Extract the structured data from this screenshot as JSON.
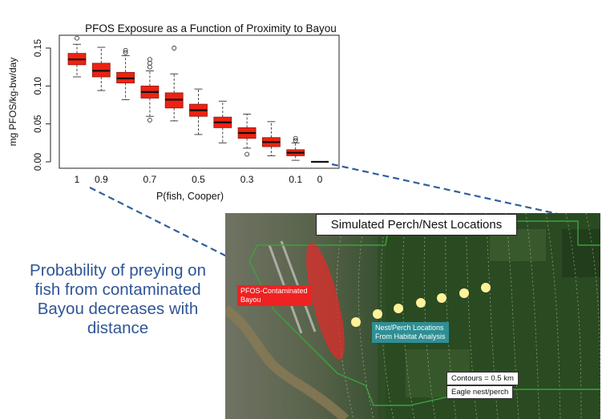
{
  "chart_data": {
    "type": "boxplot",
    "title": "PFOS Exposure as a Function of Proximity to Bayou",
    "xlabel": "P(fish, Cooper)",
    "ylabel": "mg PFOS/kg-bw/day",
    "ylim": [
      0,
      0.16
    ],
    "yticks": [
      "0.00",
      "0.05",
      "0.10",
      "0.15"
    ],
    "categories": [
      "1",
      "0.9",
      "0.8",
      "0.7",
      "0.6",
      "0.5",
      "0.4",
      "0.3",
      "0.2",
      "0.1",
      "0"
    ],
    "xtick_labels": [
      "1",
      "0.9",
      "",
      "0.7",
      "",
      "0.5",
      "",
      "0.3",
      "",
      "0.1",
      "0"
    ],
    "box_color": "#ee2211",
    "boxes": [
      {
        "median": 0.135,
        "q1": 0.128,
        "q3": 0.143,
        "wlo": 0.112,
        "whi": 0.155,
        "outliers": [
          0.163
        ]
      },
      {
        "median": 0.12,
        "q1": 0.112,
        "q3": 0.13,
        "wlo": 0.094,
        "whi": 0.151,
        "outliers": []
      },
      {
        "median": 0.11,
        "q1": 0.104,
        "q3": 0.118,
        "wlo": 0.082,
        "whi": 0.14,
        "outliers": [
          0.144,
          0.147
        ]
      },
      {
        "median": 0.092,
        "q1": 0.084,
        "q3": 0.1,
        "wlo": 0.06,
        "whi": 0.12,
        "outliers": [
          0.055,
          0.125,
          0.13,
          0.135
        ]
      },
      {
        "median": 0.082,
        "q1": 0.071,
        "q3": 0.091,
        "wlo": 0.054,
        "whi": 0.116,
        "outliers": [
          0.15
        ]
      },
      {
        "median": 0.068,
        "q1": 0.06,
        "q3": 0.076,
        "wlo": 0.036,
        "whi": 0.096,
        "outliers": []
      },
      {
        "median": 0.052,
        "q1": 0.045,
        "q3": 0.059,
        "wlo": 0.025,
        "whi": 0.08,
        "outliers": []
      },
      {
        "median": 0.038,
        "q1": 0.031,
        "q3": 0.045,
        "wlo": 0.018,
        "whi": 0.063,
        "outliers": [
          0.01
        ]
      },
      {
        "median": 0.026,
        "q1": 0.02,
        "q3": 0.032,
        "wlo": 0.008,
        "whi": 0.053,
        "outliers": []
      },
      {
        "median": 0.012,
        "q1": 0.008,
        "q3": 0.016,
        "wlo": 0.002,
        "whi": 0.025,
        "outliers": [
          0.028,
          0.031
        ]
      },
      {
        "median": 0.0,
        "q1": 0.0,
        "q3": 0.0,
        "wlo": 0.0,
        "whi": 0.0,
        "outliers": []
      }
    ]
  },
  "caption": {
    "lines": [
      "Probability of preying on",
      "fish from contaminated",
      "Bayou decreases with",
      "distance"
    ]
  },
  "map": {
    "title": "Simulated Perch/Nest Locations",
    "bayou_label": [
      "PFOS-Contaminated",
      "Bayou"
    ],
    "nest_label": [
      "Nest/Perch Locations",
      "From Habitat Analysis"
    ],
    "contours_label": "Contours = 0.5 km",
    "legend_label": "Eagle nest/perch",
    "colors": {
      "bayou": "#e52a2a",
      "nest_points": "#fff29a",
      "label_red": "#ee2222",
      "label_teal": "#2e8f94",
      "boundary": "#3ca23c"
    }
  }
}
